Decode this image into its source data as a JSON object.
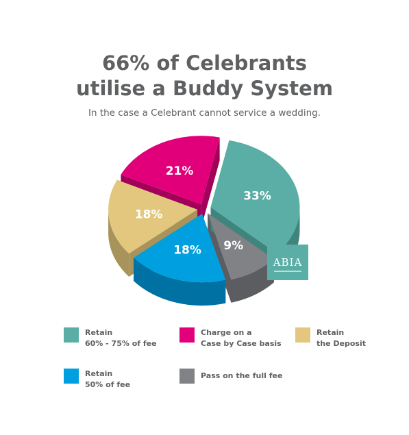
{
  "title_line1": "66% of Celebrants",
  "title_line2": "utilise a Buddy System",
  "subtitle": "In the case a Celebrant cannot service a wedding.",
  "badge": {
    "name": "ABIA"
  },
  "chart_data": {
    "type": "pie",
    "style": "3d",
    "slices": [
      {
        "label": "Retain 60% - 75% of fee",
        "value": 33,
        "value_label": "33%",
        "color": "#5aaea5",
        "side": "#3f857d"
      },
      {
        "label": "Pass on the full fee",
        "value": 9,
        "value_label": "9%",
        "color": "#808285",
        "side": "#5c5d60"
      },
      {
        "label": "Retain 50% of fee",
        "value": 18,
        "value_label": "18%",
        "color": "#00a0e0",
        "side": "#0071a3"
      },
      {
        "label": "Retain the Deposit",
        "value": 18,
        "value_label": "18%",
        "color": "#e3c77f",
        "side": "#a8935a"
      },
      {
        "label": "Charge on a Case by Case basis",
        "value": 21,
        "value_label": "21%",
        "color": "#e2007a",
        "side": "#a3005a"
      }
    ],
    "legend_position": "bottom"
  },
  "legend": [
    {
      "line1": "Retain",
      "line2": "60% - 75% of fee",
      "color": "#5aaea5"
    },
    {
      "line1": "Charge on a",
      "line2": "Case by Case basis",
      "color": "#e2007a"
    },
    {
      "line1": "Retain",
      "line2": "the Deposit",
      "color": "#e3c77f"
    },
    {
      "line1": "Retain",
      "line2": "50% of fee",
      "color": "#00a0e0"
    },
    {
      "line1": "Pass on the full fee",
      "line2": "",
      "color": "#808285"
    }
  ]
}
